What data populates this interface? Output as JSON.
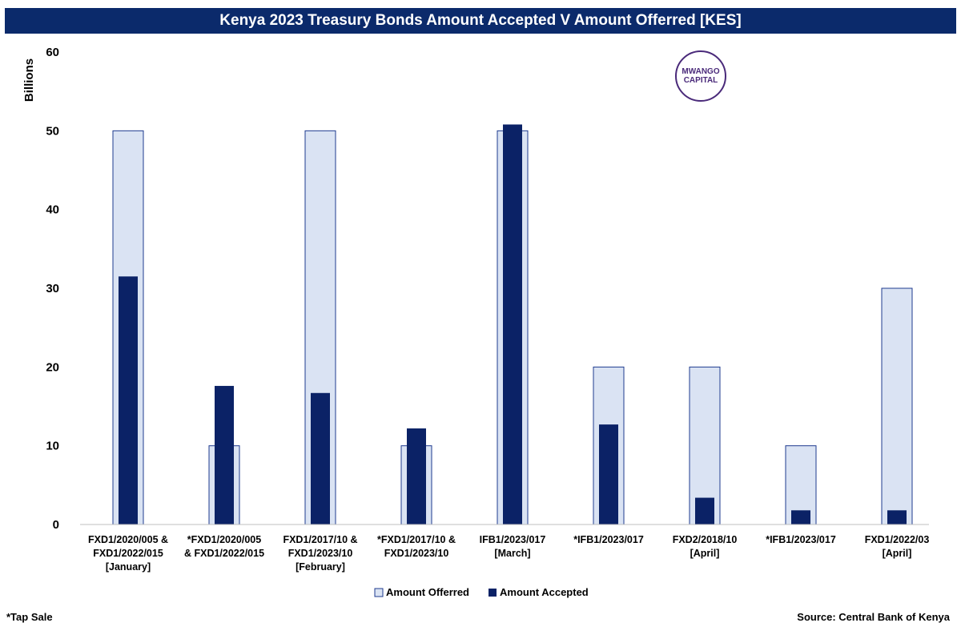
{
  "title": "Kenya 2023 Treasury Bonds Amount Accepted V Amount Offerred [KES]",
  "logo_text": "MWANGO CAPITAL",
  "footnote": "*Tap Sale",
  "source": "Source: Central Bank of Kenya",
  "colors": {
    "offered_fill": "#dae3f3",
    "offered_stroke": "#1f3b8f",
    "accepted": "#0b2266",
    "title_bg": "#0b2a6b"
  },
  "chart_data": {
    "type": "bar",
    "title": "Kenya 2023 Treasury Bonds Amount Accepted V Amount Offerred [KES]",
    "xlabel": "",
    "ylabel": "Billions",
    "ylim": [
      0,
      60
    ],
    "yticks": [
      0,
      10,
      20,
      30,
      40,
      50,
      60
    ],
    "grid": false,
    "legend_position": "bottom",
    "categories": [
      [
        "FXD1/2020/005 &",
        "FXD1/2022/015",
        "[January]"
      ],
      [
        "*FXD1/2020/005",
        "& FXD1/2022/015"
      ],
      [
        "FXD1/2017/10 &",
        "FXD1/2023/10",
        "[February]"
      ],
      [
        "*FXD1/2017/10 &",
        "FXD1/2023/10"
      ],
      [
        "IFB1/2023/017",
        "[March]"
      ],
      [
        "*IFB1/2023/017"
      ],
      [
        "FXD2/2018/10",
        "[April]"
      ],
      [
        "*IFB1/2023/017"
      ],
      [
        "FXD1/2022/03",
        "[April]"
      ]
    ],
    "series": [
      {
        "name": "Amount Offerred",
        "values": [
          50,
          10,
          50,
          10,
          50,
          20,
          20,
          10,
          30
        ]
      },
      {
        "name": "Amount Accepted",
        "values": [
          31.5,
          17.6,
          16.7,
          12.2,
          50.8,
          12.7,
          3.4,
          1.8,
          1.8
        ]
      }
    ]
  }
}
